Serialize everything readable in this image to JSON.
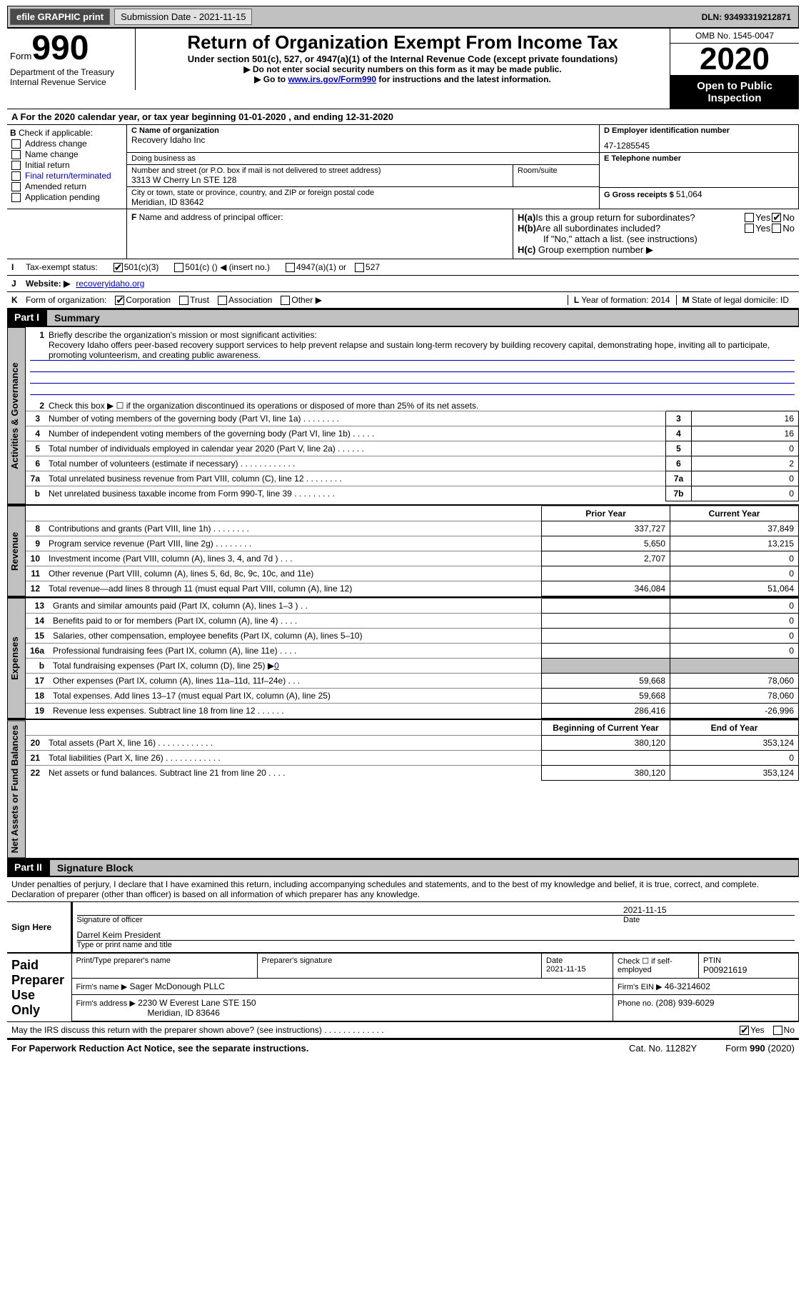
{
  "top_bar": {
    "efile_label": "efile GRAPHIC print",
    "submission_label": "Submission Date - 2021-11-15",
    "dln_label": "DLN: 93493319212871"
  },
  "header": {
    "form_word": "Form",
    "form_number": "990",
    "title": "Return of Organization Exempt From Income Tax",
    "subtitle": "Under section 501(c), 527, or 4947(a)(1) of the Internal Revenue Code (except private foundations)",
    "note1": "▶ Do not enter social security numbers on this form as it may be made public.",
    "note2_pre": "▶ Go to ",
    "note2_link": "www.irs.gov/Form990",
    "note2_post": " for instructions and the latest information.",
    "dept": "Department of the Treasury",
    "irs": "Internal Revenue Service",
    "omb": "OMB No. 1545-0047",
    "year": "2020",
    "open": "Open to Public Inspection"
  },
  "section_a": {
    "text_pre": "A For the 2020 calendar year, or tax year beginning ",
    "begin": "01-01-2020",
    "mid": "  , and ending ",
    "end": "12-31-2020"
  },
  "section_b": {
    "label": "B",
    "intro": " Check if applicable:",
    "items": [
      "Address change",
      "Name change",
      "Initial return",
      "Final return/terminated",
      "Amended return",
      "Application pending"
    ]
  },
  "section_c": {
    "label": "C Name of organization",
    "org_name": "Recovery Idaho Inc",
    "dba_label": "Doing business as",
    "dba": "",
    "street_label": "Number and street (or P.O. box if mail is not delivered to street address)",
    "street": "3313 W Cherry Ln STE 128",
    "room_label": "Room/suite",
    "room": "",
    "city_label": "City or town, state or province, country, and ZIP or foreign postal code",
    "city": "Meridian, ID  83642"
  },
  "section_d": {
    "label": "D Employer identification number",
    "ein": "47-1285545"
  },
  "section_e": {
    "label": "E Telephone number",
    "phone": ""
  },
  "section_g": {
    "label": "G Gross receipts $ ",
    "value": "51,064"
  },
  "section_f": {
    "label": "F",
    "text": " Name and address of principal officer:"
  },
  "section_h": {
    "ha_label": "H(a)",
    "ha_text": "  Is this a group return for subordinates?",
    "hb_label": "H(b)",
    "hb_text": " Are all subordinates included?",
    "hb_note": "If \"No,\" attach a list. (see instructions)",
    "hc_label": "H(c)",
    "hc_text": " Group exemption number ▶",
    "yes": "Yes",
    "no": "No"
  },
  "section_i": {
    "label": "I",
    "text": "Tax-exempt status:",
    "opt1": "501(c)(3)",
    "opt2_pre": "501(c) (",
    "opt2_post": ") ◀ (insert no.)",
    "opt3": "4947(a)(1) or",
    "opt4": "527"
  },
  "section_j": {
    "label": "J",
    "text": "Website: ▶",
    "site": "recoveryidaho.org"
  },
  "section_k": {
    "label": "K",
    "text": "Form of organization:",
    "opts": [
      "Corporation",
      "Trust",
      "Association",
      "Other ▶"
    ]
  },
  "section_l": {
    "label": "L",
    "text": " Year of formation: ",
    "value": "2014"
  },
  "section_m": {
    "label": "M",
    "text": " State of legal domicile: ",
    "value": "ID"
  },
  "part1": {
    "header": "Part I",
    "title": "Summary",
    "tab_gov": "Activities & Governance",
    "tab_rev": "Revenue",
    "tab_exp": "Expenses",
    "tab_net": "Net Assets or Fund Balances",
    "q1_label": "1",
    "q1_text": "Briefly describe the organization's mission or most significant activities:",
    "q1_value": "Recovery Idaho offers peer-based recovery support services to help prevent relapse and sustain long-term recovery by building recovery capital, demonstrating hope, inviting all to participate, promoting volunteerism, and creating public awareness.",
    "q2_label": "2",
    "q2_text": "Check this box ▶ ☐  if the organization discontinued its operations or disposed of more than 25% of its net assets.",
    "rows_gov": [
      {
        "n": "3",
        "text": "Number of voting members of the governing body (Part VI, line 1a)  .    .    .    .    .    .    .    .",
        "box": "3",
        "val": "16"
      },
      {
        "n": "4",
        "text": "Number of independent voting members of the governing body (Part VI, line 1b)    .    .    .    .    .",
        "box": "4",
        "val": "16"
      },
      {
        "n": "5",
        "text": "Total number of individuals employed in calendar year 2020 (Part V, line 2a)    .    .    .    .    .    .",
        "box": "5",
        "val": "0"
      },
      {
        "n": "6",
        "text": "Total number of volunteers (estimate if necessary)    .    .    .    .    .    .    .    .    .    .    .    .",
        "box": "6",
        "val": "2"
      },
      {
        "n": "7a",
        "text": "Total unrelated business revenue from Part VIII, column (C), line 12    .    .    .    .    .    .    .    .",
        "box": "7a",
        "val": "0"
      },
      {
        "n": "b",
        "text": "Net unrelated business taxable income from Form 990-T, line 39    .    .    .    .    .    .    .    .    .",
        "box": "7b",
        "val": "0"
      }
    ],
    "col_prior": "Prior Year",
    "col_current": "Current Year",
    "rows_rev": [
      {
        "n": "8",
        "text": "Contributions and grants (Part VIII, line 1h)    .    .    .    .    .    .    .    .",
        "p": "337,727",
        "c": "37,849"
      },
      {
        "n": "9",
        "text": "Program service revenue (Part VIII, line 2g)    .    .    .    .    .    .    .    .",
        "p": "5,650",
        "c": "13,215"
      },
      {
        "n": "10",
        "text": "Investment income (Part VIII, column (A), lines 3, 4, and 7d )    .    .    .",
        "p": "2,707",
        "c": "0"
      },
      {
        "n": "11",
        "text": "Other revenue (Part VIII, column (A), lines 5, 6d, 8c, 9c, 10c, and 11e)",
        "p": "",
        "c": "0"
      },
      {
        "n": "12",
        "text": "Total revenue—add lines 8 through 11 (must equal Part VIII, column (A), line 12)",
        "p": "346,084",
        "c": "51,064"
      }
    ],
    "rows_exp": [
      {
        "n": "13",
        "text": "Grants and similar amounts paid (Part IX, column (A), lines 1–3 )    .    .",
        "p": "",
        "c": "0"
      },
      {
        "n": "14",
        "text": "Benefits paid to or for members (Part IX, column (A), line 4)    .    .    .    .",
        "p": "",
        "c": "0"
      },
      {
        "n": "15",
        "text": "Salaries, other compensation, employee benefits (Part IX, column (A), lines 5–10)",
        "p": "",
        "c": "0"
      },
      {
        "n": "16a",
        "text": "Professional fundraising fees (Part IX, column (A), line 11e)    .    .    .    .",
        "p": "",
        "c": "0"
      },
      {
        "n": "b",
        "text": "Total fundraising expenses (Part IX, column (D), line 25) ▶",
        "link": "0",
        "p": "shade",
        "c": "shade"
      },
      {
        "n": "17",
        "text": "Other expenses (Part IX, column (A), lines 11a–11d, 11f–24e)    .    .    .",
        "p": "59,668",
        "c": "78,060"
      },
      {
        "n": "18",
        "text": "Total expenses. Add lines 13–17 (must equal Part IX, column (A), line 25)",
        "p": "59,668",
        "c": "78,060"
      },
      {
        "n": "19",
        "text": "Revenue less expenses. Subtract line 18 from line 12    .    .    .    .    .    .",
        "p": "286,416",
        "c": "-26,996"
      }
    ],
    "col_begin": "Beginning of Current Year",
    "col_end": "End of Year",
    "rows_net": [
      {
        "n": "20",
        "text": "Total assets (Part X, line 16)    .    .    .    .    .    .    .    .    .    .    .    .",
        "p": "380,120",
        "c": "353,124"
      },
      {
        "n": "21",
        "text": "Total liabilities (Part X, line 26)    .    .    .    .    .    .    .    .    .    .    .    .",
        "p": "",
        "c": "0"
      },
      {
        "n": "22",
        "text": "Net assets or fund balances. Subtract line 21 from line 20    .    .    .    .",
        "p": "380,120",
        "c": "353,124"
      }
    ]
  },
  "part2": {
    "header": "Part II",
    "title": "Signature Block",
    "declaration": "Under penalties of perjury, I declare that I have examined this return, including accompanying schedules and statements, and to the best of my knowledge and belief, it is true, correct, and complete. Declaration of preparer (other than officer) is based on all information of which preparer has any knowledge.",
    "sign_here": "Sign Here",
    "sig_date": "2021-11-15",
    "sig_officer_label": "Signature of officer",
    "sig_date_label": "Date",
    "officer_name": "Darrel Keim  President",
    "officer_type_label": "Type or print name and title",
    "paid_prep": "Paid Preparer Use Only",
    "prep_name_label": "Print/Type preparer's name",
    "prep_name": "",
    "prep_sig_label": "Preparer's signature",
    "prep_date_label": "Date",
    "prep_date": "2021-11-15",
    "self_emp_label": "Check ☐ if self-employed",
    "ptin_label": "PTIN",
    "ptin": "P00921619",
    "firm_name_label": "Firm's name    ▶",
    "firm_name": "Sager McDonough PLLC",
    "firm_ein_label": "Firm's EIN ▶",
    "firm_ein": "46-3214602",
    "firm_addr_label": "Firm's address ▶",
    "firm_addr1": "2230 W Everest Lane STE 150",
    "firm_addr2": "Meridian, ID  83646",
    "phone_label": "Phone no.",
    "phone": "(208) 939-6029",
    "discuss": "May the IRS discuss this return with the preparer shown above? (see instructions)    .    .    .    .    .    .    .    .    .    .    .    .    .",
    "discuss_yes": "Yes",
    "discuss_no": "No"
  },
  "footer": {
    "left": "For Paperwork Reduction Act Notice, see the separate instructions.",
    "mid": "Cat. No. 11282Y",
    "right_pre": "Form ",
    "right_bold": "990",
    "right_post": " (2020)"
  }
}
